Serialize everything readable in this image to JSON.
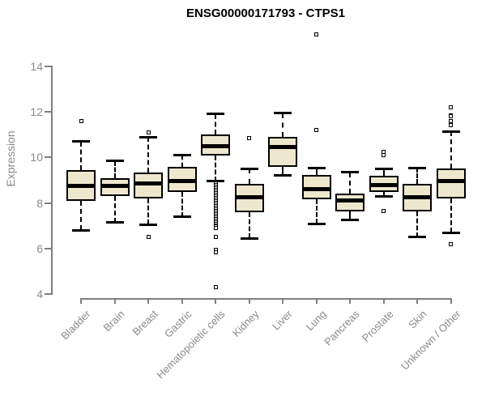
{
  "colors": {
    "box_fill": "#EDE7CE",
    "box_border": "#000000",
    "median": "#000000",
    "axis": "#7F7F7F",
    "tick_text": "#8A8A8A",
    "title_text": "#000000",
    "background": "#FFFFFF"
  },
  "chart_data": {
    "type": "boxplot",
    "title": "ENSG00000171793 - CTPS1",
    "xlabel": "",
    "ylabel": "Expression",
    "ylim": [
      4,
      14
    ],
    "yticks": [
      4,
      6,
      8,
      10,
      12,
      14
    ],
    "grid": false,
    "legend": false,
    "categories": [
      "Bladder",
      "Brain",
      "Breast",
      "Gastric",
      "Hematopoietic cells",
      "Kidney",
      "Liver",
      "Lung",
      "Pancreas",
      "Prostate",
      "Skin",
      "Unknown / Other"
    ],
    "series": [
      {
        "name": "Bladder",
        "low": 6.8,
        "q1": 8.1,
        "median": 8.75,
        "q3": 9.45,
        "high": 10.7,
        "outliers": [
          11.6
        ]
      },
      {
        "name": "Brain",
        "low": 7.15,
        "q1": 8.3,
        "median": 8.75,
        "q3": 9.1,
        "high": 9.85,
        "outliers": []
      },
      {
        "name": "Breast",
        "low": 7.05,
        "q1": 8.2,
        "median": 8.85,
        "q3": 9.35,
        "high": 10.9,
        "outliers": [
          11.1,
          6.5
        ]
      },
      {
        "name": "Gastric",
        "low": 7.4,
        "q1": 8.5,
        "median": 8.95,
        "q3": 9.6,
        "high": 10.1,
        "outliers": []
      },
      {
        "name": "Hematopoietic cells",
        "low": 8.95,
        "q1": 10.1,
        "median": 10.5,
        "q3": 11.0,
        "high": 11.9,
        "outliers": [
          8.85,
          8.78,
          8.71,
          8.64,
          8.57,
          8.5,
          8.43,
          8.36,
          8.29,
          8.22,
          8.15,
          8.08,
          8.01,
          7.94,
          7.87,
          7.8,
          7.73,
          7.66,
          7.59,
          7.52,
          7.45,
          7.38,
          7.31,
          7.24,
          7.17,
          7.1,
          7.03,
          6.96,
          6.9,
          6.5,
          5.95,
          5.85,
          4.3
        ]
      },
      {
        "name": "Kidney",
        "low": 6.45,
        "q1": 7.6,
        "median": 8.25,
        "q3": 8.85,
        "high": 9.5,
        "outliers": [
          10.85
        ]
      },
      {
        "name": "Liver",
        "low": 9.2,
        "q1": 9.6,
        "median": 10.45,
        "q3": 10.9,
        "high": 11.95,
        "outliers": []
      },
      {
        "name": "Lung",
        "low": 7.1,
        "q1": 8.15,
        "median": 8.6,
        "q3": 9.25,
        "high": 9.55,
        "outliers": [
          15.4,
          11.2
        ]
      },
      {
        "name": "Pancreas",
        "low": 7.25,
        "q1": 7.65,
        "median": 8.1,
        "q3": 8.4,
        "high": 9.35,
        "outliers": []
      },
      {
        "name": "Prostate",
        "low": 8.3,
        "q1": 8.5,
        "median": 8.8,
        "q3": 9.2,
        "high": 9.5,
        "outliers": [
          10.25,
          10.1,
          7.65
        ]
      },
      {
        "name": "Skin",
        "low": 6.5,
        "q1": 7.65,
        "median": 8.25,
        "q3": 8.85,
        "high": 9.55,
        "outliers": []
      },
      {
        "name": "Unknown / Other",
        "low": 6.7,
        "q1": 8.2,
        "median": 8.95,
        "q3": 9.5,
        "high": 11.15,
        "outliers": [
          12.2,
          11.85,
          11.8,
          11.6,
          11.4,
          6.2
        ]
      }
    ]
  }
}
